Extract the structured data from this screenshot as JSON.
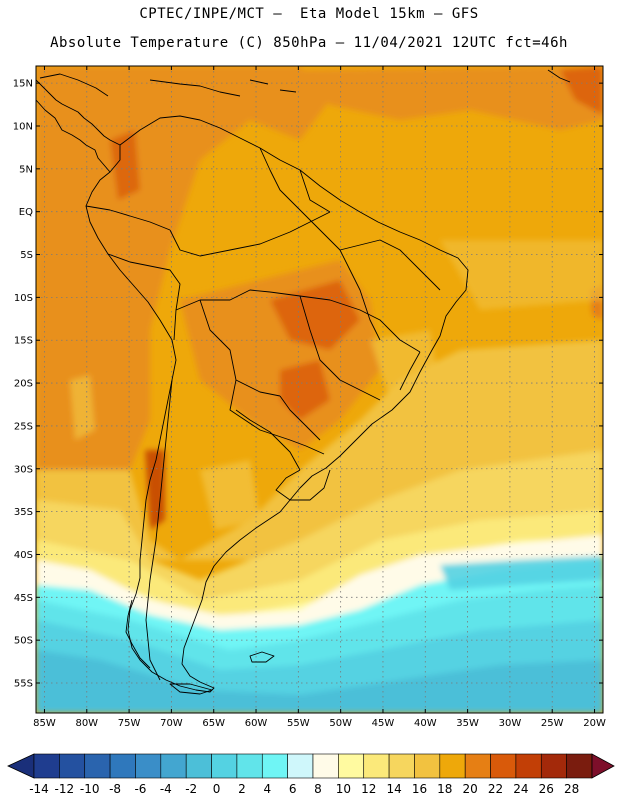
{
  "header": {
    "line1": "CPTEC/INPE/MCT –  Eta Model 15km – GFS",
    "line2": "Absolute Temperature (C) 850hPa – 11/04/2021 12UTC fct=46h"
  },
  "map": {
    "lon_range": [
      -86,
      -19
    ],
    "lat_range": [
      -58.5,
      17
    ],
    "lat_ticks": [
      "15N",
      "10N",
      "5N",
      "EQ",
      "5S",
      "10S",
      "15S",
      "20S",
      "25S",
      "30S",
      "35S",
      "40S",
      "45S",
      "50S",
      "55S"
    ],
    "lon_ticks": [
      "85W",
      "80W",
      "75W",
      "70W",
      "65W",
      "60W",
      "55W",
      "50W",
      "45W",
      "40W",
      "35W",
      "30W",
      "25W",
      "20W"
    ],
    "gridlines": "dotted"
  },
  "colorbar": {
    "labels": [
      "-14",
      "-12",
      "-10",
      "-8",
      "-6",
      "-4",
      "-2",
      "0",
      "2",
      "4",
      "6",
      "8",
      "10",
      "12",
      "14",
      "16",
      "18",
      "20",
      "22",
      "24",
      "26",
      "28"
    ],
    "colors": [
      "#1f3d8f",
      "#2451a0",
      "#2a64ae",
      "#2f78bc",
      "#3a8ec8",
      "#43a6d0",
      "#4cbfd8",
      "#54d2e2",
      "#61e4ea",
      "#6ff5f5",
      "#cff7fb",
      "#fffbe8",
      "#fffaa0",
      "#fbe97a",
      "#f6d65e",
      "#f2c240",
      "#eea80a",
      "#e67f14",
      "#d95a0a",
      "#c23f06",
      "#a3290a",
      "#7a1c0e"
    ],
    "under_color": "#1a2f7a",
    "over_color": "#7d0f2a"
  }
}
